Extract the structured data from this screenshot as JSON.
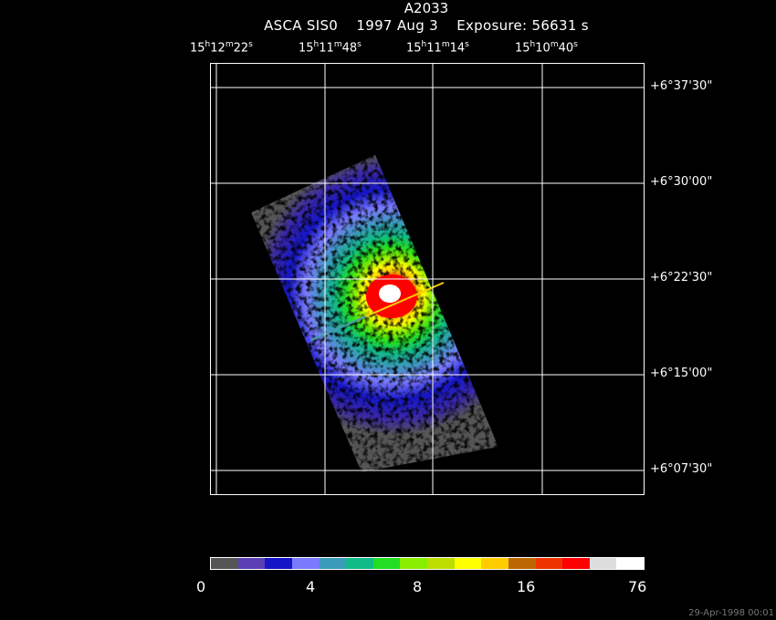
{
  "title": "A2033",
  "subtitle": {
    "instrument": "ASCA SIS0",
    "date": "1997 Aug  3",
    "exposure": "Exposure: 56631 s"
  },
  "ra_labels": [
    {
      "h": "15",
      "m": "12",
      "s": "22"
    },
    {
      "h": "15",
      "m": "11",
      "s": "48"
    },
    {
      "h": "15",
      "m": "11",
      "s": "14"
    },
    {
      "h": "15",
      "m": "10",
      "s": "40"
    }
  ],
  "dec_labels": [
    "+6°37'30\"",
    "+6°30'00\"",
    "+6°22'30\"",
    "+6°15'00\"",
    "+6°07'30\""
  ],
  "colorbar": {
    "colors": [
      "#555555",
      "#5a3fb5",
      "#1515c8",
      "#7a7aff",
      "#3a9aba",
      "#11bb88",
      "#22dd22",
      "#88ee00",
      "#bbdd00",
      "#ffff00",
      "#ffcc00",
      "#bb6600",
      "#ee3300",
      "#ff0000",
      "#dddddd",
      "#ffffff"
    ],
    "labels": [
      "0",
      "4",
      "8",
      "16",
      "76"
    ]
  },
  "footer_date": "29-Apr-1998 00:01"
}
